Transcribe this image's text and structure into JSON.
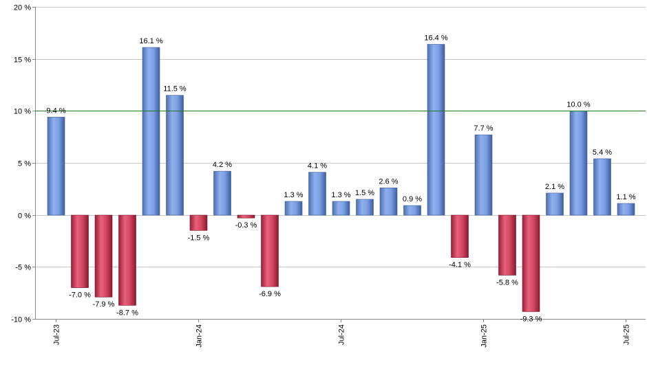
{
  "chart_data": {
    "type": "bar",
    "x_tick_labels": [
      "Jul-23",
      "Jan-24",
      "Jul-24",
      "Jan-25",
      "Jul-25"
    ],
    "x_tick_positions": [
      0,
      6,
      12,
      18,
      24
    ],
    "values": [
      9.4,
      -7.0,
      -7.9,
      -8.7,
      16.1,
      11.5,
      -1.5,
      4.2,
      -0.3,
      -6.9,
      1.3,
      4.1,
      1.3,
      1.5,
      2.6,
      0.9,
      16.4,
      -4.1,
      7.7,
      -5.8,
      -9.3,
      2.1,
      10.0,
      5.4,
      1.1
    ],
    "data_labels": [
      "9.4 %",
      "-7.0 %",
      "-7.9 %",
      "-8.7 %",
      "16.1 %",
      "11.5 %",
      "-1.5 %",
      "4.2 %",
      "-0.3 %",
      "-6.9 %",
      "1.3 %",
      "4.1 %",
      "1.3 %",
      "1.5 %",
      "2.6 %",
      "0.9 %",
      "16.4 %",
      "-4.1 %",
      "7.7 %",
      "-5.8 %",
      "-9.3 %",
      "2.1 %",
      "10.0 %",
      "5.4 %",
      "1.1 %"
    ],
    "y_tick_values": [
      20,
      15,
      10,
      5,
      0,
      -5,
      -10
    ],
    "y_tick_labels": [
      "20 %",
      "15 %",
      "10 %",
      "5 %",
      "0 %",
      "-5 %",
      "-10 %"
    ],
    "ylim": [
      -10,
      20
    ],
    "reference_line": 10,
    "grid": true,
    "colors": {
      "positive": "#6f96dc",
      "negative": "#c8324f",
      "reference_line": "#1f7a1f",
      "grid": "#c8c8c8"
    }
  }
}
